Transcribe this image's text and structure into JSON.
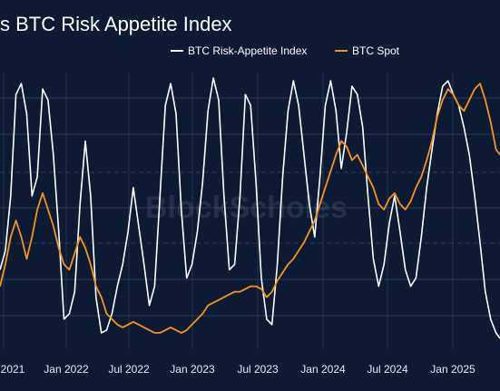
{
  "chart_data": {
    "type": "line",
    "title": "s BTC Risk Appetite Index",
    "watermark": "BlockScholes",
    "legend": {
      "placement": "top-right",
      "entries": [
        "BTC Risk-Appetite Index",
        "BTC Spot"
      ]
    },
    "x_ticks": [
      "2021",
      "Jan 2022",
      "Jul 2022",
      "Jan 2023",
      "Jul 2023",
      "Jan 2024",
      "Jul 2024",
      "Jan 2025"
    ],
    "xlim": [
      2021.6,
      2025.35
    ],
    "grid": true,
    "colors": {
      "background": "#0c1a33",
      "index_line": "#ffffff",
      "spot_line": "#f7941d",
      "grid": "#3a4a66"
    },
    "series": [
      {
        "name": "BTC Risk-Appetite Index",
        "x": [
          2021.6,
          2021.64,
          2021.68,
          2021.72,
          2021.76,
          2021.8,
          2021.84,
          2021.88,
          2021.92,
          2021.96,
          2022.0,
          2022.04,
          2022.08,
          2022.12,
          2022.16,
          2022.2,
          2022.24,
          2022.28,
          2022.32,
          2022.36,
          2022.4,
          2022.44,
          2022.48,
          2022.52,
          2022.56,
          2022.6,
          2022.64,
          2022.68,
          2022.72,
          2022.76,
          2022.8,
          2022.84,
          2022.88,
          2022.92,
          2022.96,
          2023.0,
          2023.04,
          2023.08,
          2023.12,
          2023.16,
          2023.2,
          2023.24,
          2023.28,
          2023.32,
          2023.36,
          2023.4,
          2023.44,
          2023.48,
          2023.52,
          2023.56,
          2023.6,
          2023.64,
          2023.68,
          2023.72,
          2023.76,
          2023.8,
          2023.84,
          2023.88,
          2023.92,
          2023.96,
          2024.0,
          2024.04,
          2024.08,
          2024.12,
          2024.16,
          2024.2,
          2024.24,
          2024.28,
          2024.32,
          2024.36,
          2024.4,
          2024.44,
          2024.48,
          2024.52,
          2024.56,
          2024.6,
          2024.64,
          2024.68,
          2024.72,
          2024.76,
          2024.8,
          2024.84,
          2024.88,
          2024.92,
          2024.96,
          2025.0,
          2025.04,
          2025.08,
          2025.12,
          2025.16,
          2025.2,
          2025.24,
          2025.28,
          2025.32,
          2025.35
        ],
        "values": [
          0.28,
          0.35,
          0.55,
          0.92,
          0.96,
          0.85,
          0.55,
          0.62,
          0.94,
          0.9,
          0.7,
          0.42,
          0.1,
          0.12,
          0.2,
          0.52,
          0.75,
          0.55,
          0.18,
          0.05,
          0.06,
          0.12,
          0.22,
          0.3,
          0.42,
          0.58,
          0.44,
          0.3,
          0.15,
          0.22,
          0.55,
          0.88,
          0.96,
          0.85,
          0.5,
          0.25,
          0.3,
          0.42,
          0.6,
          0.86,
          0.98,
          0.9,
          0.55,
          0.28,
          0.3,
          0.55,
          0.92,
          0.88,
          0.6,
          0.25,
          0.1,
          0.08,
          0.3,
          0.62,
          0.86,
          0.97,
          0.88,
          0.7,
          0.52,
          0.4,
          0.62,
          0.88,
          0.97,
          0.86,
          0.65,
          0.78,
          0.95,
          0.92,
          0.8,
          0.55,
          0.32,
          0.22,
          0.3,
          0.45,
          0.55,
          0.42,
          0.28,
          0.22,
          0.25,
          0.4,
          0.58,
          0.72,
          0.85,
          0.95,
          0.97,
          0.92,
          0.88,
          0.8,
          0.7,
          0.55,
          0.38,
          0.2,
          0.1,
          0.05,
          0.03
        ]
      },
      {
        "name": "BTC Spot",
        "x": [
          2021.6,
          2021.64,
          2021.68,
          2021.72,
          2021.76,
          2021.8,
          2021.84,
          2021.88,
          2021.92,
          2021.96,
          2022.0,
          2022.04,
          2022.08,
          2022.12,
          2022.16,
          2022.2,
          2022.24,
          2022.28,
          2022.32,
          2022.36,
          2022.4,
          2022.44,
          2022.48,
          2022.52,
          2022.56,
          2022.6,
          2022.64,
          2022.68,
          2022.72,
          2022.76,
          2022.8,
          2022.84,
          2022.88,
          2022.92,
          2022.96,
          2023.0,
          2023.04,
          2023.08,
          2023.12,
          2023.16,
          2023.2,
          2023.24,
          2023.28,
          2023.32,
          2023.36,
          2023.4,
          2023.44,
          2023.48,
          2023.52,
          2023.56,
          2023.6,
          2023.64,
          2023.68,
          2023.72,
          2023.76,
          2023.8,
          2023.84,
          2023.88,
          2023.92,
          2023.96,
          2024.0,
          2024.04,
          2024.08,
          2024.12,
          2024.16,
          2024.2,
          2024.24,
          2024.28,
          2024.32,
          2024.36,
          2024.4,
          2024.44,
          2024.48,
          2024.52,
          2024.56,
          2024.6,
          2024.64,
          2024.68,
          2024.72,
          2024.76,
          2024.8,
          2024.84,
          2024.88,
          2024.92,
          2024.96,
          2025.0,
          2025.04,
          2025.08,
          2025.12,
          2025.16,
          2025.2,
          2025.24,
          2025.28,
          2025.32,
          2025.35
        ],
        "values": [
          0.22,
          0.3,
          0.4,
          0.46,
          0.4,
          0.32,
          0.4,
          0.5,
          0.56,
          0.5,
          0.44,
          0.36,
          0.3,
          0.28,
          0.34,
          0.4,
          0.36,
          0.3,
          0.22,
          0.18,
          0.12,
          0.1,
          0.08,
          0.07,
          0.08,
          0.09,
          0.08,
          0.07,
          0.06,
          0.05,
          0.05,
          0.06,
          0.07,
          0.06,
          0.05,
          0.06,
          0.08,
          0.1,
          0.12,
          0.15,
          0.16,
          0.17,
          0.18,
          0.19,
          0.2,
          0.2,
          0.21,
          0.22,
          0.22,
          0.21,
          0.18,
          0.2,
          0.24,
          0.27,
          0.3,
          0.32,
          0.35,
          0.38,
          0.42,
          0.46,
          0.52,
          0.58,
          0.64,
          0.7,
          0.75,
          0.73,
          0.68,
          0.7,
          0.66,
          0.62,
          0.58,
          0.52,
          0.5,
          0.54,
          0.56,
          0.52,
          0.5,
          0.53,
          0.58,
          0.62,
          0.68,
          0.75,
          0.84,
          0.9,
          0.94,
          0.92,
          0.88,
          0.86,
          0.9,
          0.94,
          0.96,
          0.9,
          0.82,
          0.72,
          0.7
        ]
      }
    ]
  }
}
